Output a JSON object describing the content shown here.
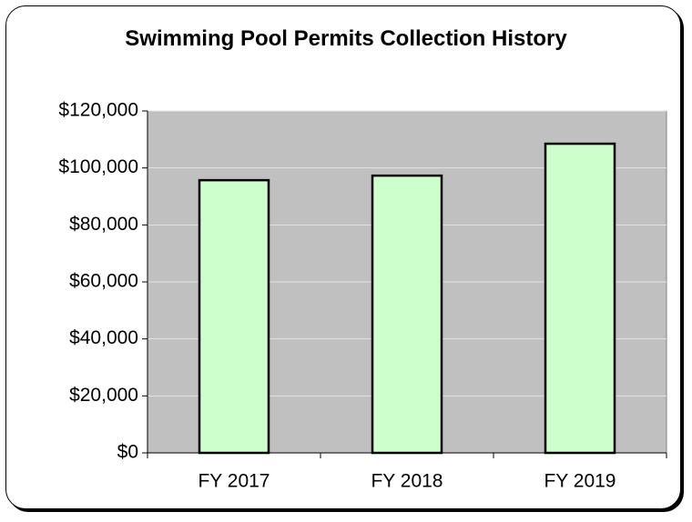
{
  "chart_data": {
    "type": "bar",
    "title": "Swimming Pool Permits Collection History",
    "categories": [
      "FY 2017",
      "FY 2018",
      "FY 2019"
    ],
    "values": [
      95700,
      97300,
      108500
    ],
    "color": "#ccffcc",
    "ylim": [
      0,
      120000
    ],
    "yticks": [
      {
        "value": 0,
        "label": "$0"
      },
      {
        "value": 20000,
        "label": "$20,000"
      },
      {
        "value": 40000,
        "label": "$40,000"
      },
      {
        "value": 60000,
        "label": "$60,000"
      },
      {
        "value": 80000,
        "label": "$80,000"
      },
      {
        "value": 100000,
        "label": "$100,000"
      },
      {
        "value": 120000,
        "label": "$120,000"
      }
    ],
    "grid": true
  }
}
